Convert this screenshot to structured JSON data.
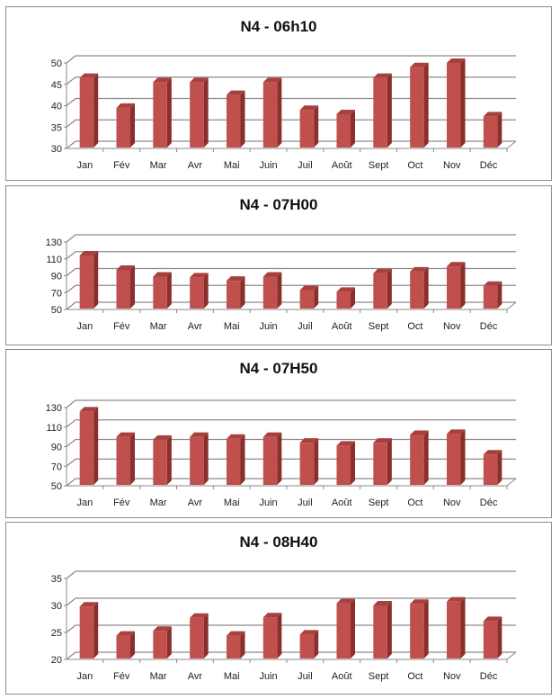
{
  "chart_data": [
    {
      "type": "bar",
      "title": "N4 - 06h10",
      "categories": [
        "Jan",
        "Fév",
        "Mar",
        "Avr",
        "Mai",
        "Juin",
        "Juil",
        "Août",
        "Sept",
        "Oct",
        "Nov",
        "Déc"
      ],
      "values": [
        46.5,
        39.5,
        45.5,
        45.5,
        42.5,
        45.5,
        39,
        38,
        46.5,
        49,
        50,
        37.5
      ],
      "ylim": [
        30,
        50
      ],
      "yticks": [
        30,
        35,
        40,
        45,
        50
      ],
      "grid": true,
      "bar_color": "#c0504d"
    },
    {
      "type": "bar",
      "title": "N4 - 07H00",
      "categories": [
        "Jan",
        "Fév",
        "Mar",
        "Avr",
        "Mai",
        "Juin",
        "Juil",
        "Août",
        "Sept",
        "Oct",
        "Nov",
        "Déc"
      ],
      "values": [
        114,
        97,
        89,
        88,
        84,
        89,
        73,
        71,
        93,
        95,
        101,
        78
      ],
      "ylim": [
        50,
        130
      ],
      "yticks": [
        50,
        70,
        90,
        110,
        130
      ],
      "grid": true,
      "bar_color": "#c0504d"
    },
    {
      "type": "bar",
      "title": "N4 - 07H50",
      "categories": [
        "Jan",
        "Fév",
        "Mar",
        "Avr",
        "Mai",
        "Juin",
        "Juil",
        "Août",
        "Sept",
        "Oct",
        "Nov",
        "Déc"
      ],
      "values": [
        126,
        100,
        97,
        100,
        98,
        100,
        94,
        91,
        94,
        102,
        103,
        82
      ],
      "ylim": [
        50,
        130
      ],
      "yticks": [
        50,
        70,
        90,
        110,
        130
      ],
      "grid": true,
      "bar_color": "#c0504d"
    },
    {
      "type": "bar",
      "title": "N4 - 08H40",
      "categories": [
        "Jan",
        "Fév",
        "Mar",
        "Avr",
        "Mai",
        "Juin",
        "Juil",
        "Août",
        "Sept",
        "Oct",
        "Nov",
        "Déc"
      ],
      "values": [
        29.8,
        24.4,
        25.3,
        27.7,
        24.4,
        27.8,
        24.6,
        30.4,
        30,
        30.3,
        30.7,
        27.1
      ],
      "ylim": [
        20,
        35
      ],
      "yticks": [
        20,
        25,
        30,
        35
      ],
      "grid": true,
      "bar_color": "#c0504d"
    }
  ]
}
